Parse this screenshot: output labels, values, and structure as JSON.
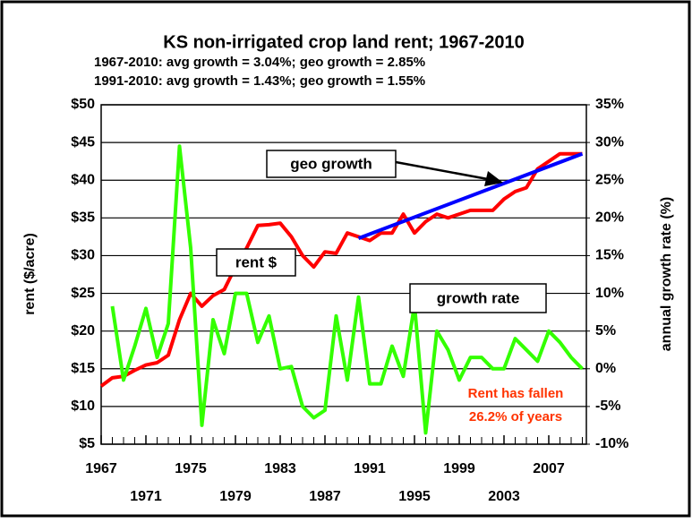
{
  "chart_data": {
    "type": "line",
    "title": "KS non-irrigated crop land rent; 1967-2010",
    "subtitles": [
      "1967-2010:  avg growth = 3.04%;  geo growth = 2.85%",
      "1991-2010:  avg growth = 1.43%;  geo growth = 1.55%"
    ],
    "ylabel": "rent ($/acre)",
    "y2label": "annual growth rate (%)",
    "x": [
      1967,
      1968,
      1969,
      1970,
      1971,
      1972,
      1973,
      1974,
      1975,
      1976,
      1977,
      1978,
      1979,
      1980,
      1981,
      1982,
      1983,
      1984,
      1985,
      1986,
      1987,
      1988,
      1989,
      1990,
      1991,
      1992,
      1993,
      1994,
      1995,
      1996,
      1997,
      1998,
      1999,
      2000,
      2001,
      2002,
      2003,
      2004,
      2005,
      2006,
      2007,
      2008,
      2009,
      2010
    ],
    "xlim": [
      1967,
      2010
    ],
    "xticks": [
      1967,
      1971,
      1975,
      1979,
      1983,
      1987,
      1991,
      1995,
      1999,
      2003,
      2007
    ],
    "ylim": [
      5,
      50
    ],
    "yticks": [
      {
        "value": 5,
        "label": "$5"
      },
      {
        "value": 10,
        "label": "$10"
      },
      {
        "value": 15,
        "label": "$15"
      },
      {
        "value": 20,
        "label": "$20"
      },
      {
        "value": 25,
        "label": "$25"
      },
      {
        "value": 30,
        "label": "$30"
      },
      {
        "value": 35,
        "label": "$35"
      },
      {
        "value": 40,
        "label": "$40"
      },
      {
        "value": 45,
        "label": "$45"
      },
      {
        "value": 50,
        "label": "$50"
      }
    ],
    "y2lim": [
      -10,
      35
    ],
    "y2ticks": [
      {
        "value": -10,
        "label": "-10%"
      },
      {
        "value": -5,
        "label": "-5%"
      },
      {
        "value": 0,
        "label": "0%"
      },
      {
        "value": 5,
        "label": "5%"
      },
      {
        "value": 10,
        "label": "10%"
      },
      {
        "value": 15,
        "label": "15%"
      },
      {
        "value": 20,
        "label": "20%"
      },
      {
        "value": 25,
        "label": "25%"
      },
      {
        "value": 30,
        "label": "30%"
      },
      {
        "value": 35,
        "label": "35%"
      }
    ],
    "grid": true,
    "series": [
      {
        "name": "rent $",
        "color": "#ff0000",
        "values": [
          12.7,
          13.8,
          14.0,
          14.8,
          15.5,
          15.8,
          16.8,
          21.5,
          25.0,
          23.3,
          24.7,
          25.5,
          28.5,
          31.0,
          34.0,
          34.1,
          34.3,
          32.5,
          30.0,
          28.5,
          30.5,
          30.3,
          33.0,
          32.5,
          32.0,
          33.0,
          33.0,
          35.5,
          33.0,
          34.5,
          35.5,
          35.0,
          35.5,
          36.0,
          36.0,
          36.0,
          37.5,
          38.5,
          39.0,
          41.5,
          42.5,
          43.5,
          43.5,
          43.5
        ]
      },
      {
        "name": "growth rate",
        "color": "#33ff00",
        "axis": "y2",
        "values": [
          null,
          8.3,
          -1.5,
          3,
          8,
          1.5,
          6,
          29.5,
          16,
          -7.5,
          6.5,
          2,
          10,
          10,
          3.5,
          7,
          0,
          0.3,
          -5,
          -6.5,
          -5.5,
          7,
          -1.5,
          9.5,
          -2,
          -2,
          3,
          -1,
          8.5,
          -8.5,
          5,
          2.5,
          -1.5,
          1.5,
          1.5,
          0,
          0,
          4,
          2.5,
          1,
          5,
          3.5,
          1.5,
          0
        ]
      },
      {
        "name": "geo growth",
        "color": "#0000ff",
        "x": [
          1990,
          2010
        ],
        "values": [
          32.3,
          43.5
        ]
      }
    ],
    "annotations": [
      "Rent has fallen",
      "26.2% of years"
    ],
    "annotation_color": "#ff3300"
  }
}
